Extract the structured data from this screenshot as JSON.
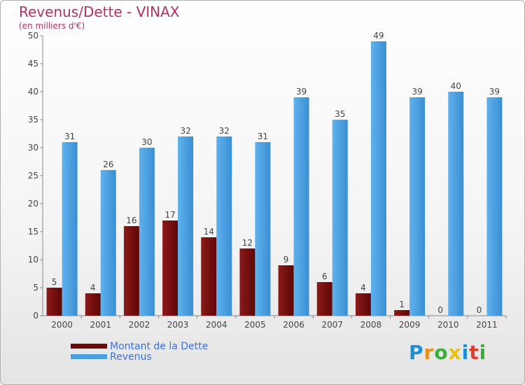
{
  "chart_data": {
    "type": "bar",
    "title": "Revenus/Dette - VINAX",
    "subtitle": "(en milliers d'€)",
    "categories": [
      "2000",
      "2001",
      "2002",
      "2003",
      "2004",
      "2005",
      "2006",
      "2007",
      "2008",
      "2009",
      "2010",
      "2011"
    ],
    "series": [
      {
        "name": "Montant de la Dette",
        "color": "#7a0c0c",
        "values": [
          5,
          4,
          16,
          17,
          14,
          12,
          9,
          6,
          4,
          1,
          0,
          0
        ]
      },
      {
        "name": "Revenus",
        "color": "#4a9fe0",
        "values": [
          31,
          26,
          30,
          32,
          32,
          31,
          39,
          35,
          49,
          39,
          40,
          39
        ]
      }
    ],
    "ylim": [
      0,
      50
    ],
    "yticks": [
      0,
      5,
      10,
      15,
      20,
      25,
      30,
      35,
      40,
      45,
      50
    ],
    "grid": false,
    "legend_position": "bottom-left"
  },
  "logo": {
    "letters": [
      "P",
      "r",
      "o",
      "x",
      "i",
      "t",
      "i"
    ],
    "colors": [
      "#1e8fd6",
      "#e8901a",
      "#3ab03a",
      "#e8c01a",
      "#1e8fd6",
      "#e83a2a",
      "#3ab03a"
    ]
  }
}
